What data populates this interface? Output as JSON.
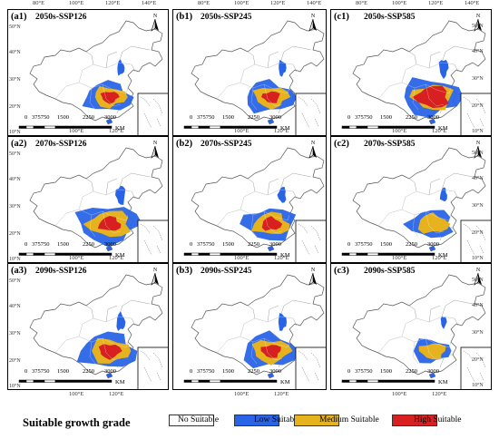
{
  "lon_top": [
    "80°E",
    "100°E",
    "120°E",
    "140°E"
  ],
  "lon_bottom": [
    "100°E",
    "120°E"
  ],
  "lat_right": [
    "50°N",
    "40°N",
    "30°N",
    "20°N",
    "10°N"
  ],
  "lat_left": [
    "50°N",
    "40°N",
    "30°N",
    "20°N",
    "10°N"
  ],
  "scale": {
    "ticks": [
      "0",
      "375750",
      "1500",
      "2250",
      "3000"
    ],
    "unit": "KM"
  },
  "north": "N",
  "panels": [
    {
      "label": "(a1)",
      "title": "2050s-SSP126",
      "extent": 1.0,
      "high": 0.8
    },
    {
      "label": "(b1)",
      "title": "2050s-SSP245",
      "extent": 1.05,
      "high": 0.8
    },
    {
      "label": "(c1)",
      "title": "2050s-SSP585",
      "extent": 1.25,
      "high": 1.5
    },
    {
      "label": "(a2)",
      "title": "2070s-SSP126",
      "extent": 1.3,
      "high": 1.0
    },
    {
      "label": "(b2)",
      "title": "2070s-SSP245",
      "extent": 1.1,
      "high": 0.9
    },
    {
      "label": "(c2)",
      "title": "2070s-SSP585",
      "extent": 0.95,
      "high": 0.1
    },
    {
      "label": "(a3)",
      "title": "2090s-SSP126",
      "extent": 1.2,
      "high": 1.0
    },
    {
      "label": "(b3)",
      "title": "2090s-SSP245",
      "extent": 1.15,
      "high": 0.9
    },
    {
      "label": "(c3)",
      "title": "2090s-SSP585",
      "extent": 0.8,
      "high": 0.05
    }
  ],
  "legend": {
    "title": "Suitable growth grade",
    "items": [
      {
        "label": "No Suitable",
        "color": "#ffffff"
      },
      {
        "label": "Low Suitable",
        "color": "#2a64e6"
      },
      {
        "label": "Medium Suitable",
        "color": "#e6b21e"
      },
      {
        "label": "High Suitable",
        "color": "#d82020"
      }
    ]
  }
}
